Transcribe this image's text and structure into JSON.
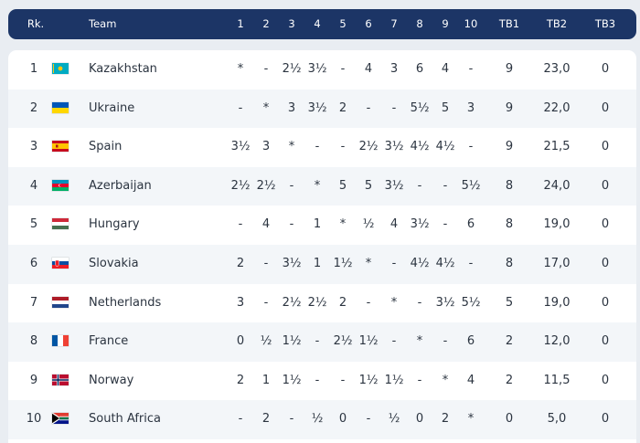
{
  "header": {
    "rank": "Rk.",
    "team": "Team",
    "rounds": [
      "1",
      "2",
      "3",
      "4",
      "5",
      "6",
      "7",
      "8",
      "9",
      "10"
    ],
    "tb1": "TB1",
    "tb2": "TB2",
    "tb3": "TB3"
  },
  "rows": [
    {
      "rank": "1",
      "team": "Kazakhstan",
      "flag": "kazakhstan-flag",
      "results": [
        "*",
        "-",
        "2½",
        "3½",
        "-",
        "4",
        "3",
        "6",
        "4",
        "-"
      ],
      "tb1": "9",
      "tb2": "23,0",
      "tb3": "0"
    },
    {
      "rank": "2",
      "team": "Ukraine",
      "flag": "ukraine-flag",
      "results": [
        "-",
        "*",
        "3",
        "3½",
        "2",
        "-",
        "-",
        "5½",
        "5",
        "3"
      ],
      "tb1": "9",
      "tb2": "22,0",
      "tb3": "0"
    },
    {
      "rank": "3",
      "team": "Spain",
      "flag": "spain-flag",
      "results": [
        "3½",
        "3",
        "*",
        "-",
        "-",
        "2½",
        "3½",
        "4½",
        "4½",
        "-"
      ],
      "tb1": "9",
      "tb2": "21,5",
      "tb3": "0"
    },
    {
      "rank": "4",
      "team": "Azerbaijan",
      "flag": "azerbaijan-flag",
      "results": [
        "2½",
        "2½",
        "-",
        "*",
        "5",
        "5",
        "3½",
        "-",
        "-",
        "5½"
      ],
      "tb1": "8",
      "tb2": "24,0",
      "tb3": "0"
    },
    {
      "rank": "5",
      "team": "Hungary",
      "flag": "hungary-flag",
      "results": [
        "-",
        "4",
        "-",
        "1",
        "*",
        "½",
        "4",
        "3½",
        "-",
        "6"
      ],
      "tb1": "8",
      "tb2": "19,0",
      "tb3": "0"
    },
    {
      "rank": "6",
      "team": "Slovakia",
      "flag": "slovakia-flag",
      "results": [
        "2",
        "-",
        "3½",
        "1",
        "1½",
        "*",
        "-",
        "4½",
        "4½",
        "-"
      ],
      "tb1": "8",
      "tb2": "17,0",
      "tb3": "0"
    },
    {
      "rank": "7",
      "team": "Netherlands",
      "flag": "netherlands-flag",
      "results": [
        "3",
        "-",
        "2½",
        "2½",
        "2",
        "-",
        "*",
        "-",
        "3½",
        "5½"
      ],
      "tb1": "5",
      "tb2": "19,0",
      "tb3": "0"
    },
    {
      "rank": "8",
      "team": "France",
      "flag": "france-flag",
      "results": [
        "0",
        "½",
        "1½",
        "-",
        "2½",
        "1½",
        "-",
        "*",
        "-",
        "6"
      ],
      "tb1": "2",
      "tb2": "12,0",
      "tb3": "0"
    },
    {
      "rank": "9",
      "team": "Norway",
      "flag": "norway-flag",
      "results": [
        "2",
        "1",
        "1½",
        "-",
        "-",
        "1½",
        "1½",
        "-",
        "*",
        "4"
      ],
      "tb1": "2",
      "tb2": "11,5",
      "tb3": "0"
    },
    {
      "rank": "10",
      "team": "South Africa",
      "flag": "south-africa-flag",
      "results": [
        "-",
        "2",
        "-",
        "½",
        "0",
        "-",
        "½",
        "0",
        "2",
        "*"
      ],
      "tb1": "0",
      "tb2": "5,0",
      "tb3": "0"
    }
  ]
}
